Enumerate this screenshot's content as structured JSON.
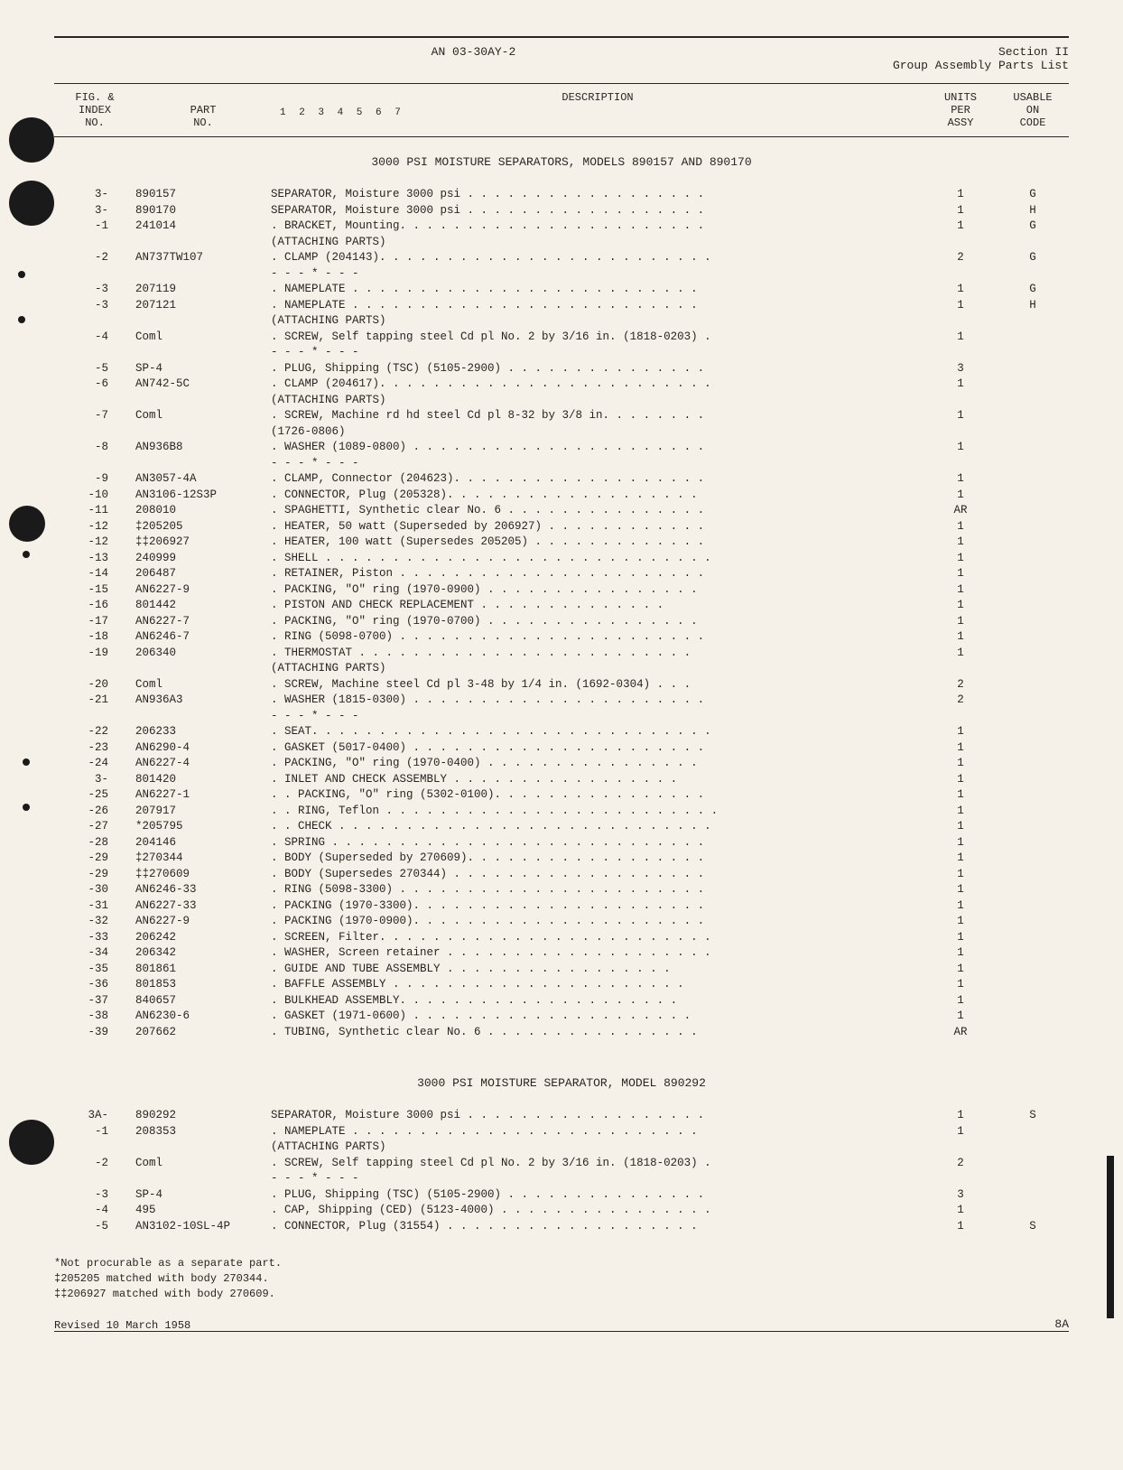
{
  "header": {
    "doc_number": "AN 03-30AY-2",
    "section": "Section II",
    "subtitle": "Group Assembly Parts List"
  },
  "columns": {
    "index": "FIG. &\nINDEX\nNO.",
    "part": "PART\nNO.",
    "description": "DESCRIPTION",
    "indent_nums": "1 2 3 4 5 6 7",
    "units": "UNITS\nPER\nASSY",
    "usable": "USABLE\nON\nCODE"
  },
  "section1": {
    "title": "3000 PSI MOISTURE SEPARATORS, MODELS 890157 AND 890170",
    "rows": [
      {
        "idx": "3-",
        "part": "890157",
        "desc": "SEPARATOR, Moisture 3000 psi . . . . . . . . . . . . . . . . . .",
        "units": "1",
        "usable": "G",
        "indent": 0
      },
      {
        "idx": "3-",
        "part": "890170",
        "desc": "SEPARATOR, Moisture 3000 psi . . . . . . . . . . . . . . . . . .",
        "units": "1",
        "usable": "H",
        "indent": 0
      },
      {
        "idx": "-1",
        "part": "241014",
        "desc": ". BRACKET, Mounting. . . . . . . . . . . . . . . . . . . . . . .",
        "units": "1",
        "usable": "G",
        "indent": 0
      },
      {
        "idx": "",
        "part": "",
        "desc": "      (ATTACHING PARTS)",
        "units": "",
        "usable": "",
        "indent": 0
      },
      {
        "idx": "-2",
        "part": "AN737TW107",
        "desc": ". CLAMP (204143). . . . . . . . . . . . . . . . . . . . . . . . .",
        "units": "2",
        "usable": "G",
        "indent": 0
      },
      {
        "idx": "",
        "part": "",
        "desc": "  - - - * - - -",
        "units": "",
        "usable": "",
        "indent": 0
      },
      {
        "idx": "-3",
        "part": "207119",
        "desc": ". NAMEPLATE  . . . . . . . . . . . . . . . . . . . . . . . . . .",
        "units": "1",
        "usable": "G",
        "indent": 0
      },
      {
        "idx": "-3",
        "part": "207121",
        "desc": ". NAMEPLATE  . . . . . . . . . . . . . . . . . . . . . . . . . .",
        "units": "1",
        "usable": "H",
        "indent": 0
      },
      {
        "idx": "",
        "part": "",
        "desc": "      (ATTACHING PARTS)",
        "units": "",
        "usable": "",
        "indent": 0
      },
      {
        "idx": "-4",
        "part": "Coml",
        "desc": ". SCREW, Self tapping steel Cd pl No. 2 by 3/16 in. (1818-0203) .",
        "units": "1",
        "usable": "",
        "indent": 0
      },
      {
        "idx": "",
        "part": "",
        "desc": "  - - - * - - -",
        "units": "",
        "usable": "",
        "indent": 0
      },
      {
        "idx": "-5",
        "part": "SP-4",
        "desc": ". PLUG, Shipping (TSC) (5105-2900) . . . . . . . . . . . . . . .",
        "units": "3",
        "usable": "",
        "indent": 0
      },
      {
        "idx": "-6",
        "part": "AN742-5C",
        "desc": ". CLAMP (204617). . . . . . . . . . . . . . . . . . . . . . . . .",
        "units": "1",
        "usable": "",
        "indent": 0
      },
      {
        "idx": "",
        "part": "",
        "desc": "      (ATTACHING PARTS)",
        "units": "",
        "usable": "",
        "indent": 0
      },
      {
        "idx": "-7",
        "part": "Coml",
        "desc": ". SCREW, Machine rd hd steel Cd pl 8-32 by 3/8 in. . . . . . . .",
        "units": "1",
        "usable": "",
        "indent": 0
      },
      {
        "idx": "",
        "part": "",
        "desc": "      (1726-0806)",
        "units": "",
        "usable": "",
        "indent": 0
      },
      {
        "idx": "-8",
        "part": "AN936B8",
        "desc": ". WASHER (1089-0800) . . . . . . . . . . . . . . . . . . . . . .",
        "units": "1",
        "usable": "",
        "indent": 0
      },
      {
        "idx": "",
        "part": "",
        "desc": "  - - - * - - -",
        "units": "",
        "usable": "",
        "indent": 0
      },
      {
        "idx": "-9",
        "part": "AN3057-4A",
        "desc": ". CLAMP, Connector (204623). . . . . . . . . . . . . . . . . . .",
        "units": "1",
        "usable": "",
        "indent": 0
      },
      {
        "idx": "-10",
        "part": "AN3106-12S3P",
        "desc": ". CONNECTOR, Plug (205328). . . . . . . . . . . . . . . . . . .",
        "units": "1",
        "usable": "",
        "indent": 0
      },
      {
        "idx": "-11",
        "part": "208010",
        "desc": ". SPAGHETTI, Synthetic clear No. 6 . . . . . . . . . . . . . . .",
        "units": "AR",
        "usable": "",
        "indent": 0
      },
      {
        "idx": "-12",
        "part": "‡205205",
        "desc": ". HEATER, 50 watt (Superseded by 206927) . . . . . . . . . . . .",
        "units": "1",
        "usable": "",
        "indent": 0
      },
      {
        "idx": "-12",
        "part": "‡‡206927",
        "desc": ". HEATER, 100 watt (Supersedes 205205) . . . . . . . . . . . . .",
        "units": "1",
        "usable": "",
        "indent": 0
      },
      {
        "idx": "-13",
        "part": "240999",
        "desc": ". SHELL . . . . . . . . . . . . . . . . . . . . . . . . . . . . .",
        "units": "1",
        "usable": "",
        "indent": 0
      },
      {
        "idx": "-14",
        "part": "206487",
        "desc": ". RETAINER, Piston . . . . . . . . . . . . . . . . . . . . . . .",
        "units": "1",
        "usable": "",
        "indent": 0
      },
      {
        "idx": "-15",
        "part": "AN6227-9",
        "desc": ". PACKING, \"O\" ring (1970-0900) . . . . . . . . . . . . . . . .",
        "units": "1",
        "usable": "",
        "indent": 0
      },
      {
        "idx": "-16",
        "part": "801442",
        "desc": ". PISTON AND CHECK REPLACEMENT . . . . . . . . . . . . . .",
        "units": "1",
        "usable": "",
        "indent": 0
      },
      {
        "idx": "-17",
        "part": "AN6227-7",
        "desc": ". PACKING, \"O\" ring (1970-0700) . . . . . . . . . . . . . . . .",
        "units": "1",
        "usable": "",
        "indent": 0
      },
      {
        "idx": "-18",
        "part": "AN6246-7",
        "desc": ". RING (5098-0700) . . . . . . . . . . . . . . . . . . . . . . .",
        "units": "1",
        "usable": "",
        "indent": 0
      },
      {
        "idx": "-19",
        "part": "206340",
        "desc": ". THERMOSTAT  . . . . . . . . . . . . . . . . . . . . . . . . .",
        "units": "1",
        "usable": "",
        "indent": 0
      },
      {
        "idx": "",
        "part": "",
        "desc": "      (ATTACHING PARTS)",
        "units": "",
        "usable": "",
        "indent": 0
      },
      {
        "idx": "-20",
        "part": "Coml",
        "desc": ". SCREW, Machine steel Cd pl 3-48 by 1/4 in. (1692-0304) . . .",
        "units": "2",
        "usable": "",
        "indent": 0
      },
      {
        "idx": "-21",
        "part": "AN936A3",
        "desc": ". WASHER (1815-0300) . . . . . . . . . . . . . . . . . . . . . .",
        "units": "2",
        "usable": "",
        "indent": 0
      },
      {
        "idx": "",
        "part": "",
        "desc": "  - - - * - - -",
        "units": "",
        "usable": "",
        "indent": 0
      },
      {
        "idx": "-22",
        "part": "206233",
        "desc": ". SEAT. . . . . . . . . . . . . . . . . . . . . . . . . . . . . .",
        "units": "1",
        "usable": "",
        "indent": 0
      },
      {
        "idx": "-23",
        "part": "AN6290-4",
        "desc": ". GASKET (5017-0400) . . . . . . . . . . . . . . . . . . . . . .",
        "units": "1",
        "usable": "",
        "indent": 0
      },
      {
        "idx": "-24",
        "part": "AN6227-4",
        "desc": ". PACKING, \"O\" ring (1970-0400) . . . . . . . . . . . . . . . .",
        "units": "1",
        "usable": "",
        "indent": 0
      },
      {
        "idx": "3-",
        "part": "801420",
        "desc": ". INLET AND CHECK ASSEMBLY . . . . . . . . . . . . . . . . .",
        "units": "1",
        "usable": "",
        "indent": 0
      },
      {
        "idx": "-25",
        "part": "AN6227-1",
        "desc": ". . PACKING, \"O\" ring (5302-0100). . . . . . . . . . . . . . . .",
        "units": "1",
        "usable": "",
        "indent": 0
      },
      {
        "idx": "-26",
        "part": "207917",
        "desc": ". . RING, Teflon . . . . . . . . . . . . . . . . . . . . . . . . .",
        "units": "1",
        "usable": "",
        "indent": 0
      },
      {
        "idx": "-27",
        "part": "*205795",
        "desc": ". . CHECK . . . . . . . . . . . . . . . . . . . . . . . . . . . .",
        "units": "1",
        "usable": "",
        "indent": 0
      },
      {
        "idx": "-28",
        "part": "204146",
        "desc": ". SPRING  . . . . . . . . . . . . . . . . . . . . . . . . . . . .",
        "units": "1",
        "usable": "",
        "indent": 0
      },
      {
        "idx": "-29",
        "part": "‡270344",
        "desc": ". BODY (Superseded by 270609). . . . . . . . . . . . . . . . . .",
        "units": "1",
        "usable": "",
        "indent": 0
      },
      {
        "idx": "-29",
        "part": "‡‡270609",
        "desc": ". BODY (Supersedes 270344) . . . . . . . . . . . . . . . . . . .",
        "units": "1",
        "usable": "",
        "indent": 0
      },
      {
        "idx": "-30",
        "part": "AN6246-33",
        "desc": ". RING (5098-3300) . . . . . . . . . . . . . . . . . . . . . . .",
        "units": "1",
        "usable": "",
        "indent": 0
      },
      {
        "idx": "-31",
        "part": "AN6227-33",
        "desc": ". PACKING (1970-3300). . . . . . . . . . . . . . . . . . . . . .",
        "units": "1",
        "usable": "",
        "indent": 0
      },
      {
        "idx": "-32",
        "part": "AN6227-9",
        "desc": ". PACKING (1970-0900). . . . . . . . . . . . . . . . . . . . . .",
        "units": "1",
        "usable": "",
        "indent": 0
      },
      {
        "idx": "-33",
        "part": "206242",
        "desc": ". SCREEN, Filter. . . . . . . . . . . . . . . . . . . . . . . . .",
        "units": "1",
        "usable": "",
        "indent": 0
      },
      {
        "idx": "-34",
        "part": "206342",
        "desc": ". WASHER, Screen retainer . . . . . . . . . . . . . . . . . . . .",
        "units": "1",
        "usable": "",
        "indent": 0
      },
      {
        "idx": "-35",
        "part": "801861",
        "desc": ". GUIDE AND TUBE ASSEMBLY . . . . . . . . . . . . . . . . .",
        "units": "1",
        "usable": "",
        "indent": 0
      },
      {
        "idx": "-36",
        "part": "801853",
        "desc": ". BAFFLE ASSEMBLY . . . . . . . . . . . . . . . . . . . . . .",
        "units": "1",
        "usable": "",
        "indent": 0
      },
      {
        "idx": "-37",
        "part": "840657",
        "desc": ". BULKHEAD ASSEMBLY. . . . . . . . . . . . . . . . . . . . .",
        "units": "1",
        "usable": "",
        "indent": 0
      },
      {
        "idx": "-38",
        "part": "AN6230-6",
        "desc": ". GASKET (1971-0600)  . . . . . . . . . . . . . . . . . . . . .",
        "units": "1",
        "usable": "",
        "indent": 0
      },
      {
        "idx": "-39",
        "part": "207662",
        "desc": ". TUBING, Synthetic clear No. 6 . . . . . . . . . . . . . . . .",
        "units": "AR",
        "usable": "",
        "indent": 0
      }
    ]
  },
  "section2": {
    "title": "3000 PSI MOISTURE SEPARATOR, MODEL 890292",
    "rows": [
      {
        "idx": "3A-",
        "part": "890292",
        "desc": "SEPARATOR, Moisture 3000 psi . . . . . . . . . . . . . . . . . .",
        "units": "1",
        "usable": "S",
        "indent": 0
      },
      {
        "idx": "-1",
        "part": "208353",
        "desc": ". NAMEPLATE . . . . . . . . . . . . . . . . . . . . . . . . . .",
        "units": "1",
        "usable": "",
        "indent": 0
      },
      {
        "idx": "",
        "part": "",
        "desc": "      (ATTACHING PARTS)",
        "units": "",
        "usable": "",
        "indent": 0
      },
      {
        "idx": "-2",
        "part": "Coml",
        "desc": ". SCREW, Self tapping steel Cd pl No. 2 by 3/16 in. (1818-0203) .",
        "units": "2",
        "usable": "",
        "indent": 0
      },
      {
        "idx": "",
        "part": "",
        "desc": "  - - - * - - -",
        "units": "",
        "usable": "",
        "indent": 0
      },
      {
        "idx": "-3",
        "part": "SP-4",
        "desc": ". PLUG, Shipping (TSC) (5105-2900) . . . . . . . . . . . . . . .",
        "units": "3",
        "usable": "",
        "indent": 0
      },
      {
        "idx": "-4",
        "part": "495",
        "desc": ". CAP, Shipping (CED) (5123-4000) . . . . . . . . . . . . . . . .",
        "units": "1",
        "usable": "",
        "indent": 0
      },
      {
        "idx": "-5",
        "part": "AN3102-10SL-4P",
        "desc": ". CONNECTOR, Plug (31554) . . . . . . . . . . . . . . . . . . .",
        "units": "1",
        "usable": "S",
        "indent": 0
      }
    ]
  },
  "footnotes": [
    "*Not procurable as a separate part.",
    "‡205205 matched with body 270344.",
    "‡‡206927 matched with body 270609."
  ],
  "revision": "Revised 10 March 1958",
  "page_num": "8A"
}
